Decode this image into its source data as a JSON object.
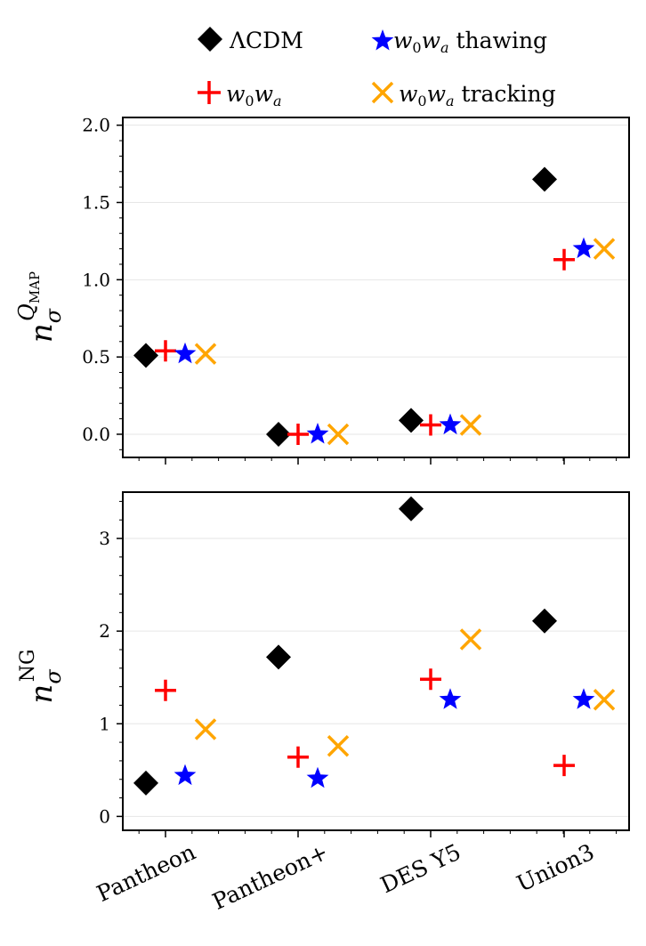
{
  "legend": {
    "lcdm": "ΛCDM",
    "w0wa_prefix": "w",
    "w0wa_sub0": "0",
    "w0wa_mid": "w",
    "w0wa_suba": "a",
    "thawing_suffix": " thawing",
    "tracking_suffix": " tracking"
  },
  "colors": {
    "lcdm": "#000000",
    "w0wa": "#ff0000",
    "thawing": "#0000ff",
    "tracking": "#ffa500",
    "grid": "#e6e6e6"
  },
  "chart_data": [
    {
      "type": "scatter",
      "panel": "top",
      "ylabel_main": "n",
      "ylabel_sub": "σ",
      "ylabel_sup": "Q",
      "ylabel_supsub": "MAP",
      "categories": [
        "Pantheon",
        "Pantheon+",
        "DES Y5",
        "Union3"
      ],
      "ylim": [
        -0.15,
        2.05
      ],
      "yticks": [
        "0.0",
        "0.5",
        "1.0",
        "1.5",
        "2.0"
      ],
      "ytick_values": [
        0.0,
        0.5,
        1.0,
        1.5,
        2.0
      ],
      "grid": true,
      "series": [
        {
          "name": "ΛCDM",
          "key": "lcdm",
          "marker": "diamond",
          "values": [
            0.51,
            0.0,
            0.09,
            1.65
          ]
        },
        {
          "name": "w0wa",
          "key": "w0wa",
          "marker": "plus",
          "values": [
            0.54,
            0.0,
            0.06,
            1.13
          ]
        },
        {
          "name": "w0wa thawing",
          "key": "thawing",
          "marker": "star",
          "values": [
            0.52,
            0.0,
            0.06,
            1.2
          ]
        },
        {
          "name": "w0wa tracking",
          "key": "tracking",
          "marker": "x",
          "values": [
            0.52,
            0.0,
            0.06,
            1.2
          ]
        }
      ]
    },
    {
      "type": "scatter",
      "panel": "bottom",
      "ylabel_main": "n",
      "ylabel_sub": "σ",
      "ylabel_sup": "NG",
      "categories": [
        "Pantheon",
        "Pantheon+",
        "DES Y5",
        "Union3"
      ],
      "ylim": [
        -0.15,
        3.5
      ],
      "yticks": [
        "0",
        "1",
        "2",
        "3"
      ],
      "ytick_values": [
        0,
        1,
        2,
        3
      ],
      "grid": true,
      "series": [
        {
          "name": "ΛCDM",
          "key": "lcdm",
          "marker": "diamond",
          "values": [
            0.36,
            1.72,
            3.32,
            2.11
          ]
        },
        {
          "name": "w0wa",
          "key": "w0wa",
          "marker": "plus",
          "values": [
            1.36,
            0.64,
            1.48,
            0.55
          ]
        },
        {
          "name": "w0wa thawing",
          "key": "thawing",
          "marker": "star",
          "values": [
            0.44,
            0.41,
            1.26,
            1.26
          ]
        },
        {
          "name": "w0wa tracking",
          "key": "tracking",
          "marker": "x",
          "values": [
            0.94,
            0.76,
            1.91,
            1.26
          ]
        }
      ]
    }
  ]
}
